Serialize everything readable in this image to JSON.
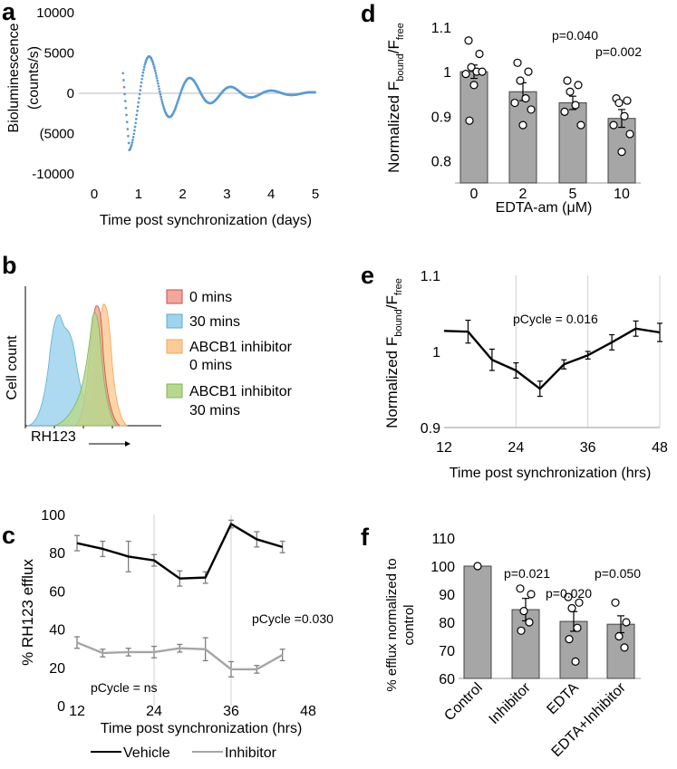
{
  "chart_data": [
    {
      "id": "a",
      "type": "scatter",
      "panel_label": "a",
      "xlabel": "Time  post synchronization (days)",
      "ylabel_lines": [
        "Bioluminescence",
        "(counts/s)"
      ],
      "xlim": [
        0,
        5
      ],
      "ylim": [
        -10000,
        10000
      ],
      "xticks": [
        0,
        1,
        2,
        3,
        4,
        5
      ],
      "yticks": [
        10000,
        5000,
        0,
        -5000,
        -10000
      ],
      "ytick_labels": [
        "10000",
        "5000",
        "0",
        "(5000",
        "-10000"
      ],
      "series_color": "#5b9bd5",
      "oscillation": {
        "t_start": 0.65,
        "t_end": 5.0,
        "step": 0.013,
        "t0": 0.8,
        "period": 0.92,
        "amplitude": 7000,
        "decay": 0.95
      }
    },
    {
      "id": "b",
      "type": "area",
      "panel_label": "b",
      "xlabel": "RH123",
      "ylabel": "Cell count",
      "legend": [
        {
          "label": "0 mins",
          "fill": "#f2a79a",
          "stroke": "#c0504d"
        },
        {
          "label": "30 mins",
          "fill": "#9fd3ee",
          "stroke": "#5aaed3"
        },
        {
          "label_lines": [
            "ABCB1 inhibitor",
            "0 mins"
          ],
          "fill": "#fdcc95",
          "stroke": "#f5a35a"
        },
        {
          "label_lines": [
            "ABCB1 inhibitor",
            "30 mins"
          ],
          "fill": "#b7d88e",
          "stroke": "#7fb25a"
        }
      ]
    },
    {
      "id": "c",
      "type": "line",
      "panel_label": "c",
      "xlabel": "Time  post synchronization (hrs)",
      "ylabel": "% RH123 efflux",
      "xlim": [
        12,
        48
      ],
      "ylim": [
        0,
        100
      ],
      "xticks": [
        12,
        24,
        36,
        48
      ],
      "yticks": [
        0,
        20,
        40,
        60,
        80,
        100
      ],
      "vgrid": [
        24,
        36
      ],
      "x": [
        12,
        16,
        20,
        24,
        28,
        32,
        36,
        40,
        44
      ],
      "series": [
        {
          "name": "Vehicle",
          "color": "#000000",
          "values": [
            85,
            82,
            78,
            76,
            66.5,
            67,
            95,
            87,
            83
          ],
          "errors": [
            4,
            4,
            8,
            3,
            4,
            3,
            2,
            4,
            3
          ]
        },
        {
          "name": "Inhibitor",
          "color": "#a6a6a6",
          "values": [
            33,
            27.5,
            28,
            28,
            30,
            29.5,
            19,
            19,
            26.5
          ],
          "errors": [
            3,
            2,
            2,
            3,
            2,
            6,
            4,
            2,
            3
          ]
        }
      ],
      "annotations": [
        "pCycle =0.030",
        "pCycle = ns"
      ]
    },
    {
      "id": "d",
      "type": "bar",
      "panel_label": "d",
      "xlabel": "EDTA-am (μM)",
      "ylabel": "Normalized F",
      "ylabel_sub1": "bound",
      "ylabel_sub2": "free",
      "categories": [
        "0",
        "2",
        "5",
        "10"
      ],
      "values": [
        1.0,
        0.955,
        0.93,
        0.895
      ],
      "errors": [
        0.015,
        0.02,
        0.015,
        0.02
      ],
      "points": [
        [
          1.07,
          1.04,
          1.01,
          1.0,
          0.995,
          1.0,
          0.97,
          0.89
        ],
        [
          1.02,
          1.0,
          0.98,
          0.94,
          0.93,
          0.915,
          0.88
        ],
        [
          0.98,
          0.97,
          0.955,
          0.925,
          0.91,
          0.88
        ],
        [
          0.94,
          0.935,
          0.93,
          0.9,
          0.88,
          0.86,
          0.82
        ]
      ],
      "ylim": [
        0.75,
        1.1
      ],
      "yticks": [
        0.8,
        0.9,
        1,
        1.1
      ],
      "ytick_labels": [
        "0.8",
        "0.9",
        "1",
        "1.1"
      ],
      "pvalues": [
        "p=0.040",
        "p=0.002"
      ],
      "bar_color": "#a6a6a6"
    },
    {
      "id": "e",
      "type": "line",
      "panel_label": "e",
      "xlabel": "Time post synchronization (hrs)",
      "ylabel": "Normalized F",
      "ylabel_sub1": "bound",
      "ylabel_sub2": "free",
      "xlim": [
        12,
        48
      ],
      "ylim": [
        0.9,
        1.1
      ],
      "xticks": [
        12,
        24,
        36,
        48
      ],
      "yticks": [
        0.9,
        1,
        1.1
      ],
      "ytick_labels": [
        "0.9",
        "1",
        "1.1"
      ],
      "vgrid": [
        24,
        36,
        48
      ],
      "x": [
        12,
        16,
        20,
        24,
        28,
        32,
        36,
        40,
        44,
        48
      ],
      "values": [
        1.027,
        1.026,
        0.989,
        0.975,
        0.951,
        0.983,
        0.995,
        1.012,
        1.03,
        1.025
      ],
      "errors": [
        0.0,
        0.015,
        0.014,
        0.01,
        0.01,
        0.006,
        0.005,
        0.01,
        0.01,
        0.012
      ],
      "annotation": "pCycle = 0.016"
    },
    {
      "id": "f",
      "type": "bar",
      "panel_label": "f",
      "ylabel_lines": [
        "% efflux normalized  to",
        "control"
      ],
      "categories": [
        "Control",
        "Inhibitor",
        "EDTA",
        "EDTA+Inhibitor"
      ],
      "values": [
        100,
        84.5,
        80.3,
        79.3
      ],
      "errors": [
        0.3,
        4,
        3.5,
        3
      ],
      "points": [
        [
          100
        ],
        [
          92,
          90,
          84,
          80,
          77
        ],
        [
          89,
          87,
          85,
          78,
          74,
          66
        ],
        [
          87,
          80,
          75,
          71
        ]
      ],
      "ylim": [
        60,
        110
      ],
      "yticks": [
        60,
        70,
        80,
        90,
        100,
        110
      ],
      "pvalues": [
        "p=0.021",
        "p=0.020",
        "p=0.050"
      ],
      "bar_color": "#a6a6a6"
    }
  ]
}
